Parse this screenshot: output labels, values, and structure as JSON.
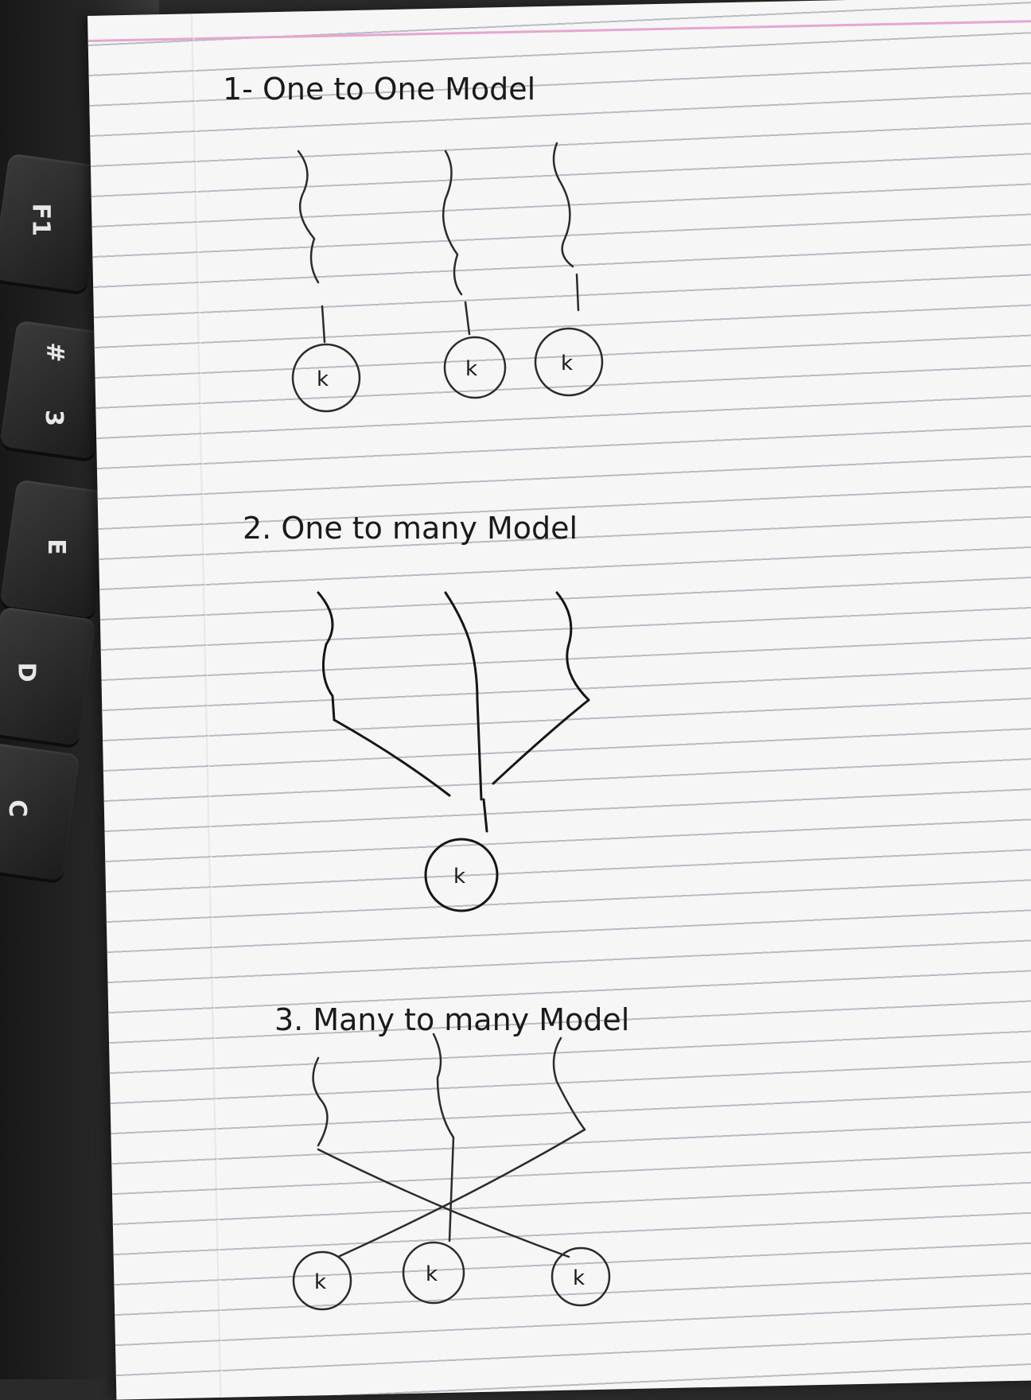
{
  "keyboard": {
    "keys": [
      "F1",
      "#",
      "3",
      "E",
      "D",
      "C"
    ]
  },
  "notebook": {
    "sections": [
      {
        "title": "1- One to One Model",
        "node_label": "k"
      },
      {
        "title": "2. One to many Model",
        "node_label": "k"
      },
      {
        "title": "3. Many to many Model",
        "node_label": "k"
      }
    ]
  }
}
